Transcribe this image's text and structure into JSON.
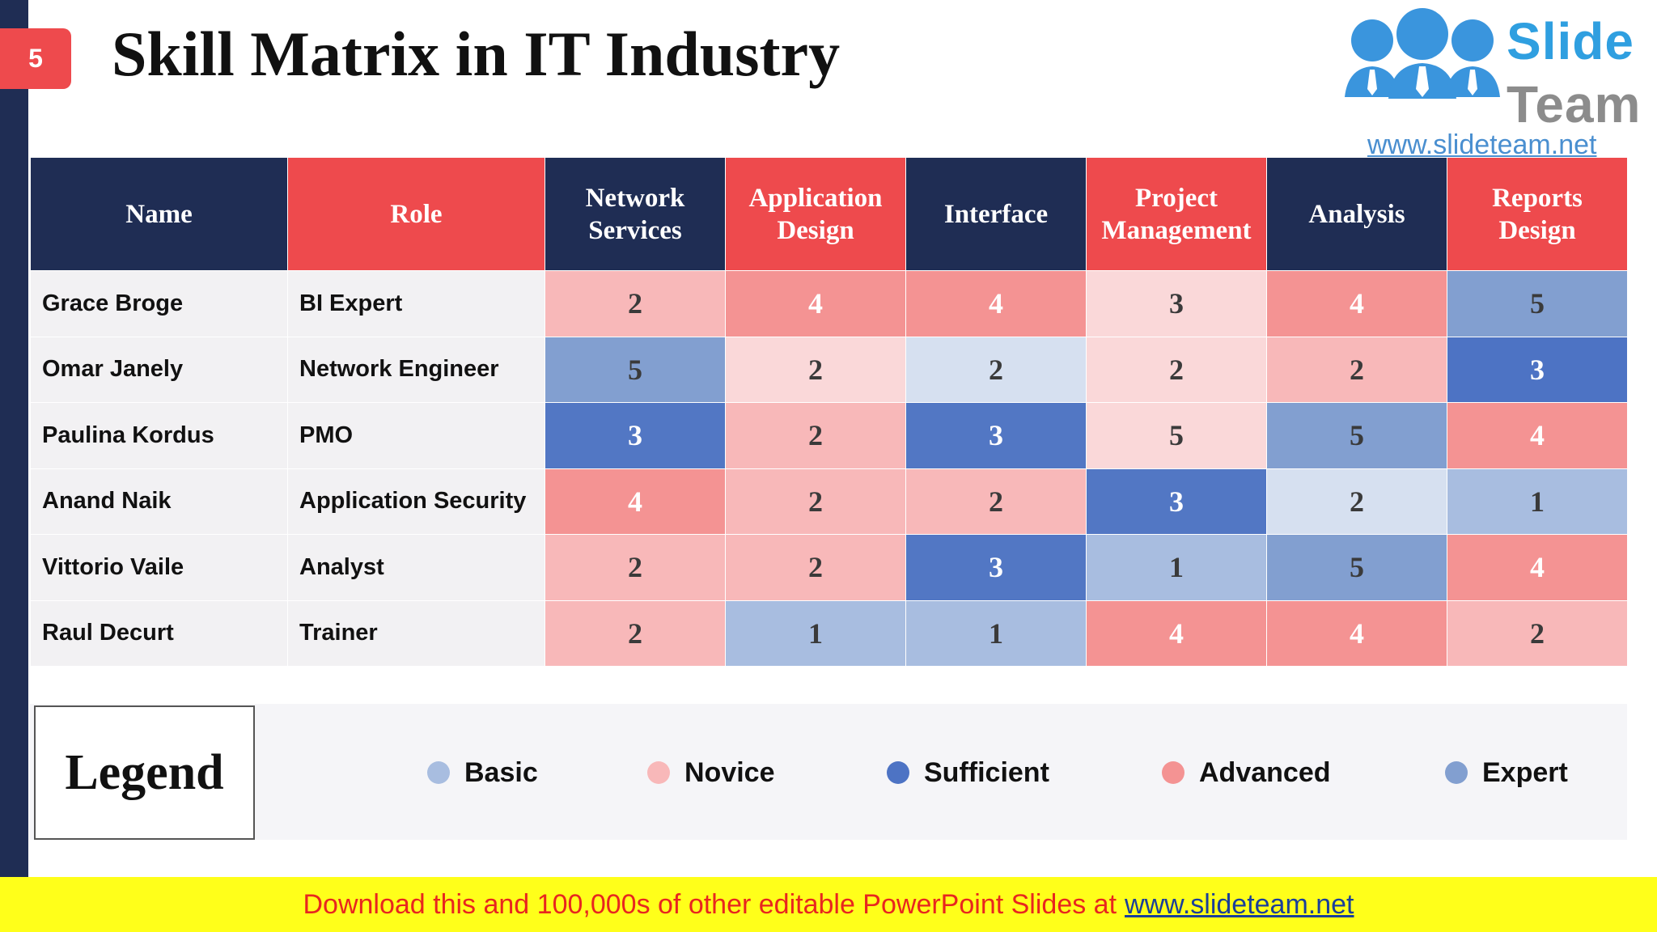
{
  "slide": {
    "number": "5",
    "title": "Skill Matrix in IT Industry"
  },
  "logo": {
    "line1": "Slide",
    "line2": "Team",
    "url": "www.slideteam.net"
  },
  "table": {
    "headers": [
      "Name",
      "Role",
      "Network Services",
      "Application Design",
      "Interface",
      "Project Management",
      "Analysis",
      "Reports Design"
    ],
    "header_colors": [
      "#1f2d54",
      "#ee4a4d",
      "#1f2d54",
      "#ee4a4d",
      "#1f2d54",
      "#ee4a4d",
      "#1f2d54",
      "#ee4a4d"
    ],
    "rows": [
      {
        "name": "Grace Broge",
        "role": "BI Expert",
        "scores": [
          2,
          4,
          4,
          3,
          4,
          5
        ]
      },
      {
        "name": "Omar Janely",
        "role": "Network Engineer",
        "scores": [
          5,
          2,
          2,
          2,
          2,
          3
        ]
      },
      {
        "name": "Paulina Kordus",
        "role": "PMO",
        "scores": [
          3,
          2,
          3,
          5,
          5,
          4
        ]
      },
      {
        "name": "Anand Naik",
        "role": "Application Security",
        "scores": [
          4,
          2,
          2,
          3,
          2,
          1
        ]
      },
      {
        "name": "Vittorio Vaile",
        "role": "Analyst",
        "scores": [
          2,
          2,
          3,
          1,
          5,
          4
        ]
      },
      {
        "name": "Raul Decurt",
        "role": "Trainer",
        "scores": [
          2,
          1,
          1,
          4,
          4,
          2
        ]
      }
    ],
    "cell_colors": [
      [
        "#f8b8b9",
        "#f49393",
        "#f49393",
        "#fad8d9",
        "#f49393",
        "#829fd0"
      ],
      [
        "#829fd0",
        "#fad8d9",
        "#d6e0f0",
        "#fad8d9",
        "#f8b8b9",
        "#4d73c4"
      ],
      [
        "#5277c4",
        "#f8b8b9",
        "#5277c4",
        "#fad8d9",
        "#829fd0",
        "#f49393"
      ],
      [
        "#f49393",
        "#f8b8b9",
        "#f8b8b9",
        "#5277c4",
        "#d6e0f0",
        "#a8bde0"
      ],
      [
        "#f8b8b9",
        "#f8b8b9",
        "#5277c4",
        "#a8bde0",
        "#829fd0",
        "#f49393"
      ],
      [
        "#f8b8b9",
        "#a8bde0",
        "#a8bde0",
        "#f49393",
        "#f49393",
        "#f8b8b9"
      ]
    ]
  },
  "legend": {
    "title": "Legend",
    "items": [
      {
        "label": "Basic",
        "color": "#a8bde0"
      },
      {
        "label": "Novice",
        "color": "#f8b8b9"
      },
      {
        "label": "Sufficient",
        "color": "#4d73c4"
      },
      {
        "label": "Advanced",
        "color": "#f49393"
      },
      {
        "label": "Expert",
        "color": "#829fd0"
      }
    ]
  },
  "footer": {
    "text": "Download this and 100,000s of other editable PowerPoint Slides at",
    "link": "www.slideteam.net"
  }
}
